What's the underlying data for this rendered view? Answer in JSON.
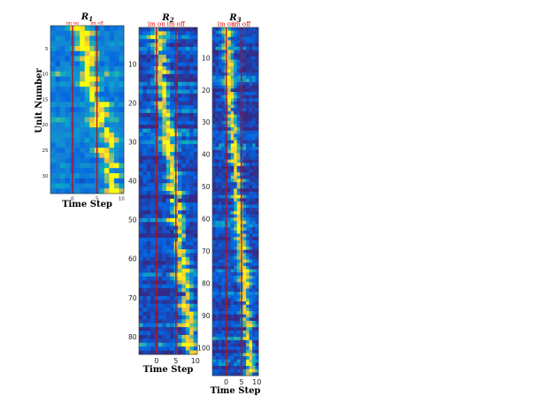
{
  "chart_data": [
    {
      "type": "heatmap",
      "title_base": "R",
      "title_sub": "1",
      "xlabel": "Time Step",
      "ylabel": "Unit Number",
      "n_units": 33,
      "time_range": [
        -4,
        10
      ],
      "xticks": [
        0,
        5,
        10
      ],
      "yticks": [
        5,
        10,
        15,
        20,
        25,
        30
      ],
      "markers": [
        {
          "label": "im on",
          "t": 0
        },
        {
          "label": "im off",
          "t": 5
        }
      ],
      "diagonal": {
        "start_t": 1.5,
        "end_t": 9,
        "jitter": 1.4
      },
      "colormap": [
        "#352a87",
        "#0363e1",
        "#1485d4",
        "#06a7c6",
        "#38b99e",
        "#92bf73",
        "#d9ba56",
        "#fcce2e",
        "#f9fb0e"
      ]
    },
    {
      "type": "heatmap",
      "title_base": "R",
      "title_sub": "2",
      "xlabel": "Time Step",
      "ylabel": "",
      "n_units": 84,
      "time_range": [
        -4,
        10
      ],
      "xticks": [
        0,
        5,
        10
      ],
      "yticks": [
        10,
        20,
        30,
        40,
        50,
        60,
        70,
        80
      ],
      "markers": [
        {
          "label": "im on",
          "t": 0
        },
        {
          "label": "im off",
          "t": 5
        }
      ],
      "diagonal": {
        "start_t": 0,
        "end_t": 9,
        "jitter": 1.0
      },
      "colormap": [
        "#352a87",
        "#0363e1",
        "#1485d4",
        "#06a7c6",
        "#38b99e",
        "#92bf73",
        "#d9ba56",
        "#fcce2e",
        "#f9fb0e"
      ]
    },
    {
      "type": "heatmap",
      "title_base": "R",
      "title_sub": "3",
      "xlabel": "Time Step",
      "ylabel": "",
      "n_units": 108,
      "time_range": [
        -4,
        10
      ],
      "xticks": [
        0,
        5,
        10
      ],
      "yticks": [
        10,
        20,
        30,
        40,
        50,
        60,
        70,
        80,
        90,
        100
      ],
      "markers": [
        {
          "label": "im on",
          "t": 0
        },
        {
          "label": "im off",
          "t": 5
        }
      ],
      "diagonal": {
        "start_t": 0,
        "end_t": 8,
        "jitter": 0.8
      },
      "colormap": [
        "#352a87",
        "#0363e1",
        "#1485d4",
        "#06a7c6",
        "#38b99e",
        "#92bf73",
        "#d9ba56",
        "#fcce2e",
        "#f9fb0e"
      ]
    }
  ]
}
